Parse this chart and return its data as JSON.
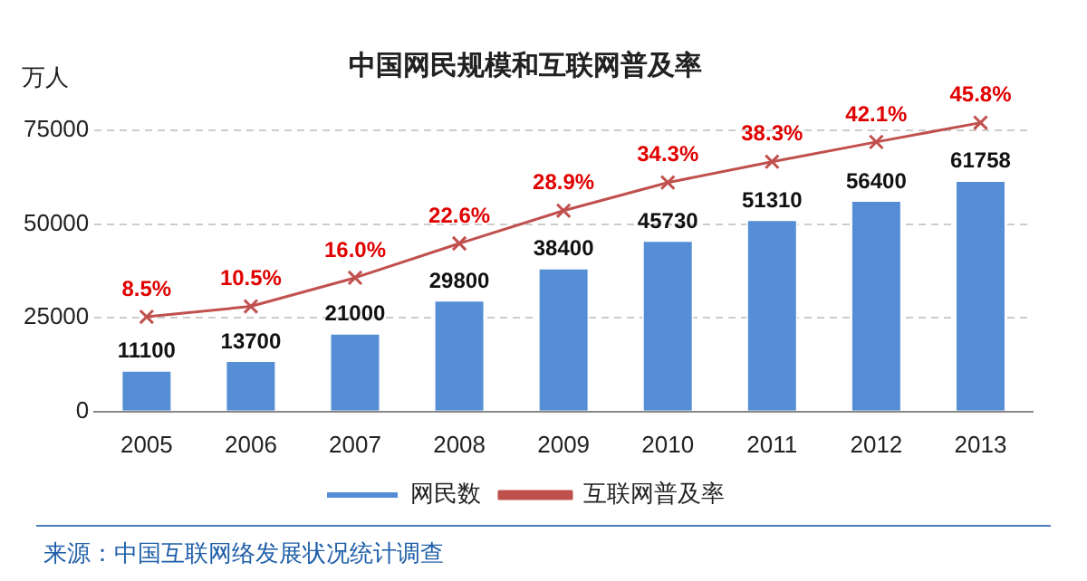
{
  "chart_data": {
    "type": "bar",
    "title": "中国网民规模和互联网普及率",
    "ylabel": "万人",
    "categories": [
      "2005",
      "2006",
      "2007",
      "2008",
      "2009",
      "2010",
      "2011",
      "2012",
      "2013"
    ],
    "series": [
      {
        "name": "网民数",
        "color": "#558ed5",
        "values": [
          11100,
          13700,
          21000,
          29800,
          38400,
          45730,
          51310,
          56400,
          61758
        ]
      },
      {
        "name": "互联网普及率",
        "type": "line",
        "axis": "y2",
        "color": "#c0504d",
        "values": [
          8.5,
          10.5,
          16.0,
          22.6,
          28.9,
          34.3,
          38.3,
          42.1,
          45.8
        ],
        "value_labels": [
          "8.5%",
          "10.5%",
          "16.0%",
          "22.6%",
          "28.9%",
          "34.3%",
          "38.3%",
          "42.1%",
          "45.8%"
        ]
      }
    ],
    "ylim": [
      0,
      75000
    ],
    "yticks": [
      0,
      25000,
      50000,
      75000
    ],
    "tick_labels": [
      "x",
      "y"
    ],
    "grid": "y",
    "legend": "bottom",
    "marker": "cross",
    "line_style": "solid",
    "data_labels": true,
    "annotations": [
      "来源：中国互联网络发展状况统计调查"
    ]
  }
}
